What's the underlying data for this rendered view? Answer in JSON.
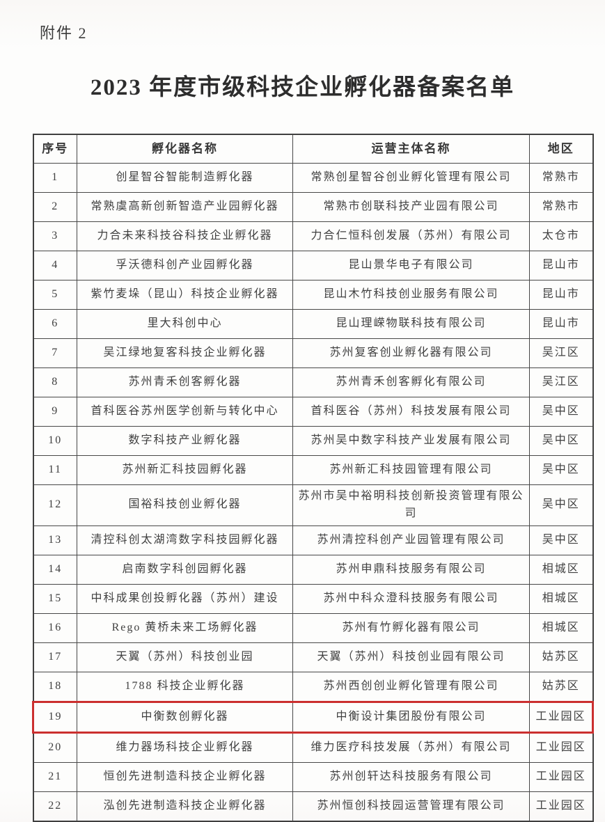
{
  "page": {
    "attachment_label": "附件 2",
    "title": "2023 年度市级科技企业孵化器备案名单"
  },
  "table": {
    "headers": [
      "序号",
      "孵化器名称",
      "运营主体名称",
      "地区"
    ],
    "highlight_color": "#cb2f2f",
    "highlighted_row_no": "19",
    "rows": [
      {
        "no": "1",
        "incubator": "创星智谷智能制造孵化器",
        "operator": "常熟创星智谷创业孵化管理有限公司",
        "region": "常熟市"
      },
      {
        "no": "2",
        "incubator": "常熟虞高新创新智造产业园孵化器",
        "operator": "常熟市创联科技产业园有限公司",
        "region": "常熟市"
      },
      {
        "no": "3",
        "incubator": "力合未来科技谷科技企业孵化器",
        "operator": "力合仁恒科创发展（苏州）有限公司",
        "region": "太仓市"
      },
      {
        "no": "4",
        "incubator": "孚沃德科创产业园孵化器",
        "operator": "昆山景华电子有限公司",
        "region": "昆山市"
      },
      {
        "no": "5",
        "incubator": "紫竹麦垛（昆山）科技企业孵化器",
        "operator": "昆山木竹科技创业服务有限公司",
        "region": "昆山市"
      },
      {
        "no": "6",
        "incubator": "里大科创中心",
        "operator": "昆山理嵘物联科技有限公司",
        "region": "昆山市"
      },
      {
        "no": "7",
        "incubator": "吴江绿地复客科技企业孵化器",
        "operator": "苏州复客创业孵化器有限公司",
        "region": "吴江区"
      },
      {
        "no": "8",
        "incubator": "苏州青禾创客孵化器",
        "operator": "苏州青禾创客孵化有限公司",
        "region": "吴江区"
      },
      {
        "no": "9",
        "incubator": "首科医谷苏州医学创新与转化中心",
        "operator": "首科医谷（苏州）科技发展有限公司",
        "region": "吴中区"
      },
      {
        "no": "10",
        "incubator": "数字科技产业孵化器",
        "operator": "苏州吴中数字科技产业发展有限公司",
        "region": "吴中区"
      },
      {
        "no": "11",
        "incubator": "苏州新汇科技园孵化器",
        "operator": "苏州新汇科技园管理有限公司",
        "region": "吴中区"
      },
      {
        "no": "12",
        "incubator": "国裕科技创业孵化器",
        "operator": "苏州市吴中裕明科技创新投资管理有限公司",
        "region": "吴中区"
      },
      {
        "no": "13",
        "incubator": "清控科创太湖湾数字科技园孵化器",
        "operator": "苏州清控科创产业园管理有限公司",
        "region": "吴中区"
      },
      {
        "no": "14",
        "incubator": "启南数字科创园孵化器",
        "operator": "苏州申鼎科技服务有限公司",
        "region": "相城区"
      },
      {
        "no": "15",
        "incubator": "中科成果创投孵化器（苏州）建设",
        "operator": "苏州中科众澄科技服务有限公司",
        "region": "相城区"
      },
      {
        "no": "16",
        "incubator": "Rego 黄桥未来工场孵化器",
        "operator": "苏州有竹孵化器有限公司",
        "region": "相城区"
      },
      {
        "no": "17",
        "incubator": "天翼（苏州）科技创业园",
        "operator": "天翼（苏州）科技创业园有限公司",
        "region": "姑苏区"
      },
      {
        "no": "18",
        "incubator": "1788 科技企业孵化器",
        "operator": "苏州西创创业孵化管理有限公司",
        "region": "姑苏区"
      },
      {
        "no": "19",
        "incubator": "中衡数创孵化器",
        "operator": "中衡设计集团股份有限公司",
        "region": "工业园区",
        "highlight": true
      },
      {
        "no": "20",
        "incubator": "维力器场科技企业孵化器",
        "operator": "维力医疗科技发展（苏州）有限公司",
        "region": "工业园区"
      },
      {
        "no": "21",
        "incubator": "恒创先进制造科技企业孵化器",
        "operator": "苏州创轩达科技服务有限公司",
        "region": "工业园区"
      },
      {
        "no": "22",
        "incubator": "泓创先进制造科技企业孵化器",
        "operator": "苏州恒创科技园运营管理有限公司",
        "region": "工业园区"
      }
    ]
  }
}
